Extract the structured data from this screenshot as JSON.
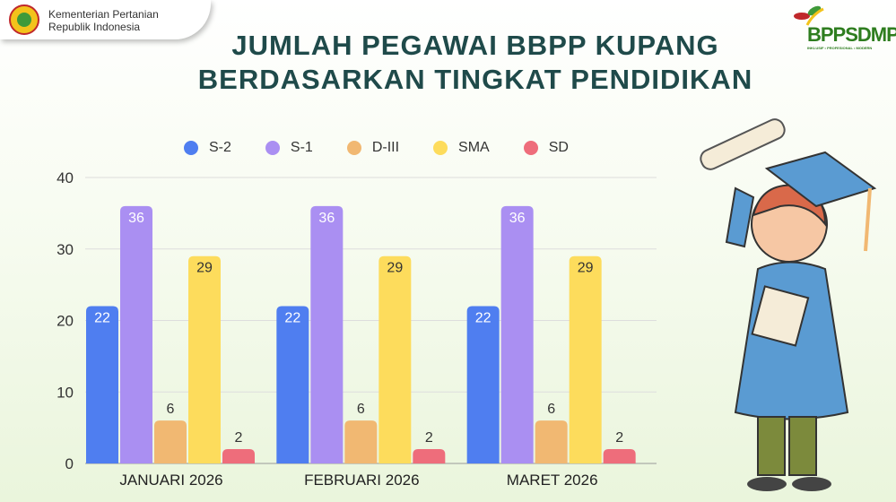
{
  "header": {
    "org_line1": "Kementerian Pertanian",
    "org_line2": "Republik Indonesia",
    "right_logo": "BPPSDMP",
    "right_logo_tagline": "INKLUSIF • PROFESIONAL • MODERN"
  },
  "title_line1": "JUMLAH PEGAWAI BBPP KUPANG",
  "title_line2": "BERDASARKAN TINGKAT PENDIDIKAN",
  "chart_data": {
    "type": "bar",
    "title": "JUMLAH PEGAWAI BBPP KUPANG BERDASARKAN TINGKAT PENDIDIKAN",
    "categories": [
      "JANUARI 2026",
      "FEBRUARI 2026",
      "MARET 2026"
    ],
    "series": [
      {
        "name": "S-2",
        "color": "#4f7ef0",
        "values": [
          22,
          22,
          22
        ]
      },
      {
        "name": "S-1",
        "color": "#aa8ff2",
        "values": [
          36,
          36,
          36
        ]
      },
      {
        "name": "D-III",
        "color": "#f1b872",
        "values": [
          6,
          6,
          6
        ]
      },
      {
        "name": "SMA",
        "color": "#fddc5c",
        "values": [
          29,
          29,
          29
        ]
      },
      {
        "name": "SD",
        "color": "#ee6d7b",
        "values": [
          2,
          2,
          2
        ]
      }
    ],
    "ylim": [
      0,
      40
    ],
    "yticks": [
      0,
      10,
      20,
      30,
      40
    ],
    "grid": true,
    "legend": "top",
    "xlabel": "",
    "ylabel": ""
  }
}
